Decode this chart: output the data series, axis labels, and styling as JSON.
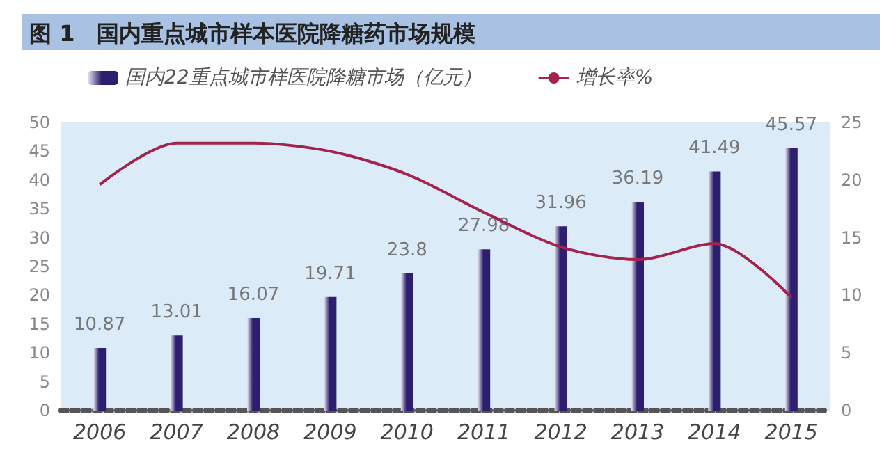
{
  "chart_data": {
    "type": "bar",
    "title": "图 1　国内重点城市样本医院降糖药市场规模",
    "categories": [
      "2006",
      "2007",
      "2008",
      "2009",
      "2010",
      "2011",
      "2012",
      "2013",
      "2014",
      "2015"
    ],
    "series": [
      {
        "name": "国内22重点城市样医院降糖市场（亿元）",
        "color": "#2e1f6e",
        "values": [
          10.87,
          13.01,
          16.07,
          19.71,
          23.8,
          27.98,
          31.96,
          36.19,
          41.49,
          45.57
        ],
        "value_labels": [
          "10.87",
          "13.01",
          "16.07",
          "19.71",
          "23.8",
          "27.98",
          "31.96",
          "36.19",
          "41.49",
          "45.57"
        ]
      },
      {
        "name": "增长率%",
        "type": "line",
        "axis": "y2",
        "color": "#a3234c",
        "values": [
          19.6,
          23.2,
          23.2,
          22.5,
          20.5,
          17.2,
          14.2,
          13.1,
          14.5,
          9.8
        ]
      }
    ],
    "ylim": [
      0,
      50
    ],
    "yticks": [
      0,
      5,
      10,
      15,
      20,
      25,
      30,
      35,
      40,
      45,
      50
    ],
    "y2lim": [
      0,
      25
    ],
    "y2ticks": [
      0,
      5,
      10,
      15,
      20,
      25
    ],
    "grid": false,
    "legend": "top",
    "marker": "none",
    "line_style": "solid"
  }
}
